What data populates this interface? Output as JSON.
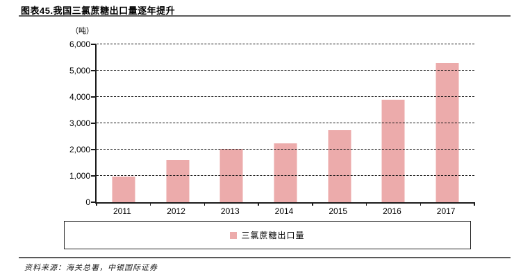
{
  "header": {
    "title": "图表45.我国三氯蔗糖出口量逐年提升"
  },
  "chart_data": {
    "type": "bar",
    "title": "图表45.我国三氯蔗糖出口量逐年提升",
    "unit_label": "（吨）",
    "categories": [
      "2011",
      "2012",
      "2013",
      "2014",
      "2015",
      "2016",
      "2017"
    ],
    "series": [
      {
        "name": "三氯蔗糖出口量",
        "values": [
          970,
          1600,
          2030,
          2250,
          2750,
          3900,
          5280
        ]
      }
    ],
    "ylim": [
      0,
      6000
    ],
    "ytick_values": [
      0,
      1000,
      2000,
      3000,
      4000,
      5000,
      6000
    ],
    "ytick_labels": [
      "0",
      "1,000",
      "2,000",
      "3,000",
      "4,000",
      "5,000",
      "6,000"
    ],
    "grid": "horizontal-dashed",
    "legend_position": "bottom-center-boxed",
    "bar_color": "#ECABAB",
    "axis_color": "#1a1a1a"
  },
  "footer": {
    "source": "资料来源：海关总署，中银国际证券"
  }
}
